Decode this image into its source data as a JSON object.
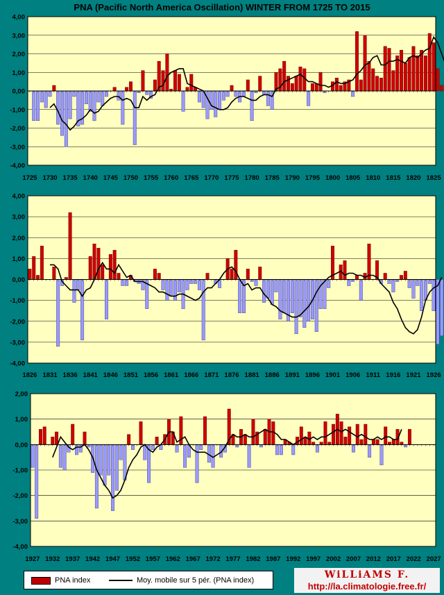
{
  "title": "PNA (Pacific North America Oscillation) WINTER FROM 1725 TO 2015",
  "colors": {
    "bar_fill": "#cc0000",
    "bar_neg_fill": "#9999ff",
    "plot_bg": "#ffffc0",
    "background": "#008080",
    "moving_avg": "#000000"
  },
  "legend": {
    "bar_label": "PNA index",
    "line_label": "Moy. mobile sur 5 pér. (PNA index)"
  },
  "logo": {
    "name": "WiLLiAMS F.",
    "url": "http://la.climatologie.free.fr/"
  },
  "chart_data": [
    {
      "type": "bar",
      "start_year": 1725,
      "end_year": 1825,
      "ylim": [
        -4,
        4
      ],
      "grid": true,
      "y_ticks": [
        "-4,00",
        "-3,00",
        "-2,00",
        "-1,00",
        "0,00",
        "1,00",
        "2,00",
        "3,00",
        "4,00"
      ],
      "x_ticks": [
        "1725",
        "1730",
        "1735",
        "1740",
        "1745",
        "1750",
        "1755",
        "1760",
        "1765",
        "1770",
        "1775",
        "1780",
        "1785",
        "1790",
        "1795",
        "1800",
        "1805",
        "1810",
        "1815",
        "1820",
        "1825"
      ],
      "series": [
        {
          "name": "PNA index",
          "type": "bar",
          "values": [
            0,
            -1.6,
            -1.6,
            -0.6,
            -0.9,
            -0.3,
            0.3,
            -1.8,
            -2.4,
            -3.0,
            -1.5,
            -0.3,
            -1.9,
            -1.8,
            -0.7,
            -1.1,
            -1.6,
            -0.6,
            -0.8,
            -0.3,
            0.0,
            0.2,
            -0.5,
            -1.8,
            0.2,
            0.5,
            -2.9,
            -0.1,
            1.1,
            -0.2,
            -0.4,
            0.6,
            1.6,
            1.1,
            2.0,
            0.1,
            1.1,
            0.9,
            -1.1,
            0.2,
            0.9,
            0.2,
            -0.6,
            -0.9,
            -1.5,
            -1.0,
            -1.4,
            -1.0,
            -0.5,
            -0.3,
            0.3,
            -0.3,
            -0.6,
            -0.3,
            0.6,
            -1.6,
            -0.1,
            0.8,
            -0.2,
            -0.8,
            -1.0,
            1.0,
            1.2,
            1.6,
            0.8,
            0.4,
            0.8,
            1.3,
            1.2,
            -0.8,
            0.4,
            0.4,
            1.0,
            -0.1,
            0.0,
            0.5,
            0.7,
            0.3,
            0.5,
            0.6,
            -0.3,
            3.2,
            0.6,
            3.0,
            1.6,
            1.2,
            0.8,
            0.7,
            2.4,
            2.3,
            1.1,
            1.9,
            2.2,
            1.5,
            1.8,
            2.4,
            1.9,
            2.2,
            1.9,
            3.1,
            2.6,
            1.2,
            0.3,
            0.8,
            -1.2,
            0.3,
            0.8,
            1.6,
            0.2,
            0.2,
            0.0
          ]
        },
        {
          "name": "Moy. mobile sur 5 pér. (PNA index)",
          "type": "line",
          "values": [
            null,
            null,
            null,
            null,
            null,
            -0.9,
            -0.7,
            -1.1,
            -1.6,
            -1.8,
            -2.1,
            -1.9,
            -1.6,
            -1.5,
            -1.3,
            -1.0,
            -1.2,
            -1.1,
            -0.8,
            -0.6,
            -0.4,
            -0.3,
            -0.3,
            -0.5,
            -0.4,
            -0.5,
            -0.9,
            -0.9,
            -0.3,
            -0.5,
            -0.3,
            -0.2,
            0.2,
            0.3,
            0.8,
            1.0,
            1.1,
            1.2,
            1.2,
            0.4,
            0.3,
            0.2,
            0.1,
            0.0,
            -0.4,
            -0.8,
            -0.9,
            -1.0,
            -1.0,
            -0.9,
            -0.6,
            -0.4,
            -0.3,
            -0.3,
            -0.4,
            -0.5,
            -0.5,
            -0.3,
            -0.2,
            -0.2,
            -0.3,
            0.1,
            0.2,
            0.5,
            0.6,
            0.7,
            0.8,
            0.9,
            0.7,
            0.5,
            0.5,
            0.4,
            0.3,
            0.3,
            0.2,
            0.3,
            0.5,
            0.4,
            0.4,
            0.5,
            0.6,
            0.9,
            1.1,
            1.4,
            1.5,
            1.8,
            1.9,
            1.4,
            1.4,
            1.6,
            1.6,
            1.7,
            1.6,
            1.5,
            1.8,
            1.9,
            1.8,
            2.0,
            2.2,
            2.3,
            2.9,
            2.6,
            2.0,
            1.4,
            0.8,
            0.3,
            0.5,
            0.5,
            0.4,
            0.4,
            0.3
          ]
        }
      ]
    },
    {
      "type": "bar",
      "start_year": 1826,
      "end_year": 1926,
      "ylim": [
        -4,
        4
      ],
      "grid": true,
      "y_ticks": [
        "-4,00",
        "-3,00",
        "-2,00",
        "-1,00",
        "0,00",
        "1,00",
        "2,00",
        "3,00",
        "4,00"
      ],
      "x_ticks": [
        "1826",
        "1831",
        "1836",
        "1841",
        "1846",
        "1851",
        "1856",
        "1861",
        "1866",
        "1871",
        "1876",
        "1881",
        "1886",
        "1891",
        "1896",
        "1901",
        "1906",
        "1911",
        "1916",
        "1921",
        "1926"
      ],
      "series": [
        {
          "name": "PNA index",
          "type": "bar",
          "values": [
            0.5,
            1.1,
            0.2,
            1.6,
            0.0,
            0.0,
            0.6,
            -3.2,
            -0.3,
            0.1,
            3.2,
            -1.1,
            -0.5,
            -2.9,
            0.0,
            1.1,
            1.7,
            1.5,
            0.7,
            -1.9,
            1.2,
            1.4,
            0.3,
            -0.3,
            -0.3,
            0.2,
            -0.1,
            -0.2,
            -0.5,
            -1.4,
            0.0,
            0.5,
            0.3,
            -0.5,
            -1.0,
            -0.8,
            -1.0,
            -0.6,
            -1.4,
            -0.5,
            -0.2,
            -0.2,
            -0.5,
            -2.9,
            0.3,
            0.0,
            -0.2,
            -0.4,
            0.0,
            1.0,
            0.5,
            1.4,
            -1.6,
            -1.6,
            0.5,
            -0.1,
            -0.3,
            0.6,
            -1.1,
            -0.9,
            -1.2,
            -0.6,
            -1.9,
            -1.6,
            -2.0,
            -1.6,
            -2.6,
            -1.8,
            -2.3,
            -2.0,
            -1.9,
            -2.5,
            -1.4,
            -1.4,
            -0.4,
            1.6,
            0.0,
            0.7,
            0.9,
            -0.3,
            -0.1,
            0.2,
            -1.0,
            0.3,
            1.7,
            0.0,
            0.9,
            -0.2,
            0.3,
            -0.2,
            -0.6,
            -0.1,
            0.2,
            0.4,
            -0.4,
            -0.9,
            -0.3,
            -1.5,
            -1.0,
            -0.2,
            -1.5,
            -3.1,
            -2.7,
            -2.3,
            -2.9,
            -2.7,
            -0.2,
            1.0,
            1.3,
            0.5,
            -1.7,
            -0.5
          ]
        },
        {
          "name": "Moy. mobile sur 5 pér. (PNA index)",
          "type": "line",
          "values": [
            null,
            null,
            null,
            null,
            null,
            0.7,
            0.7,
            0.5,
            -0.1,
            -0.3,
            -0.5,
            -0.5,
            -0.5,
            -0.8,
            -0.5,
            -0.4,
            0.0,
            0.5,
            0.8,
            0.5,
            0.5,
            0.3,
            0.7,
            0.4,
            0.1,
            0.2,
            -0.1,
            -0.1,
            -0.1,
            -0.2,
            -0.3,
            -0.4,
            -0.6,
            -0.6,
            -0.7,
            -0.8,
            -0.8,
            -0.7,
            -0.7,
            -0.8,
            -0.9,
            -1.0,
            -0.9,
            -0.6,
            -0.4,
            -0.4,
            -0.2,
            0.0,
            0.3,
            0.5,
            0.6,
            0.4,
            0.0,
            -0.3,
            -0.2,
            -0.5,
            -0.4,
            -0.4,
            -0.7,
            -0.9,
            -1.2,
            -1.3,
            -1.5,
            -1.6,
            -1.7,
            -1.8,
            -1.8,
            -1.7,
            -1.5,
            -1.3,
            -1.0,
            -0.6,
            -0.3,
            -0.1,
            0.1,
            0.2,
            0.3,
            0.4,
            0.2,
            0.3,
            0.3,
            0.2,
            0.2,
            0.1,
            0.2,
            0.2,
            0.1,
            -0.2,
            -0.4,
            -0.6,
            -1.1,
            -1.4,
            -1.9,
            -2.3,
            -2.5,
            -2.6,
            -2.4,
            -1.8,
            -1.0,
            -0.6,
            -0.4,
            -0.3,
            0.1
          ]
        }
      ]
    },
    {
      "type": "bar",
      "start_year": 1927,
      "end_year": 2027,
      "ylim": [
        -4,
        2
      ],
      "grid": true,
      "y_ticks": [
        "-4,00",
        "-3,00",
        "-2,00",
        "-1,00",
        "0,00",
        "1,00",
        "2,00"
      ],
      "x_ticks": [
        "1927",
        "1932",
        "1937",
        "1942",
        "1947",
        "1952",
        "1957",
        "1962",
        "1967",
        "1972",
        "1977",
        "1982",
        "1987",
        "1992",
        "1997",
        "2002",
        "2007",
        "2012",
        "2017",
        "2022",
        "2027"
      ],
      "series": [
        {
          "name": "PNA index",
          "type": "bar",
          "values": [
            -0.9,
            -2.9,
            0.6,
            0.7,
            0.0,
            0.3,
            0.5,
            -0.9,
            -1.0,
            -0.3,
            0.8,
            -0.4,
            -0.3,
            0.5,
            -0.1,
            -1.1,
            -2.5,
            -1.2,
            -1.6,
            -1.2,
            -2.6,
            -1.8,
            -0.6,
            -1.4,
            0.4,
            -0.2,
            0.0,
            0.9,
            -0.6,
            -1.5,
            -0.2,
            0.3,
            -0.2,
            0.4,
            1.0,
            0.5,
            -0.3,
            1.1,
            -0.9,
            -0.5,
            0.0,
            -1.5,
            -0.2,
            1.1,
            -0.7,
            -0.9,
            0.0,
            -0.5,
            -0.3,
            1.4,
            0.4,
            -0.1,
            0.6,
            0.4,
            -0.9,
            1.0,
            0.5,
            -0.1,
            0.6,
            1.0,
            0.9,
            -0.4,
            -0.4,
            0.2,
            0.1,
            -0.4,
            0.3,
            0.7,
            0.3,
            0.5,
            0.1,
            -0.3,
            0.1,
            0.9,
            0.1,
            0.8,
            1.2,
            0.9,
            0.3,
            0.7,
            -0.3,
            0.8,
            0.2,
            0.8,
            -0.5,
            0.2,
            0.2,
            -0.8,
            0.7,
            0.1,
            0.2,
            0.6,
            0.1,
            -0.1,
            0.6,
            0.0,
            0.0,
            0.0,
            0.0,
            0.0,
            0.0
          ]
        },
        {
          "name": "Moy. mobile sur 5 pér. (PNA index)",
          "type": "line",
          "values": [
            null,
            null,
            null,
            null,
            null,
            -0.5,
            -0.1,
            0.3,
            0.1,
            -0.1,
            -0.2,
            -0.1,
            -0.1,
            0.0,
            -0.2,
            -0.5,
            -1.0,
            -1.3,
            -1.6,
            -1.8,
            -2.1,
            -2.0,
            -1.8,
            -1.4,
            -0.9,
            -0.6,
            -0.4,
            -0.1,
            0.0,
            -0.2,
            -0.3,
            -0.1,
            0.0,
            0.2,
            0.5,
            0.5,
            0.1,
            0.2,
            0.3,
            0.0,
            -0.2,
            -0.3,
            -0.3,
            -0.3,
            -0.4,
            -0.5,
            -0.4,
            -0.3,
            -0.1,
            0.2,
            0.4,
            0.3,
            0.3,
            0.4,
            0.3,
            0.3,
            0.4,
            0.5,
            0.6,
            0.5,
            0.5,
            0.4,
            0.2,
            0.2,
            0.1,
            0.0,
            0.1,
            0.2,
            0.3,
            0.2,
            0.3,
            0.2,
            0.3,
            0.3,
            0.4,
            0.5,
            0.6,
            0.5,
            0.6,
            0.5,
            0.4,
            0.3,
            0.4,
            0.3,
            0.2,
            0.2,
            0.3,
            0.2,
            0.3,
            0.3,
            0.2,
            0.2,
            0.6,
            null,
            null,
            null,
            null,
            null,
            null,
            null,
            null
          ]
        }
      ]
    }
  ]
}
